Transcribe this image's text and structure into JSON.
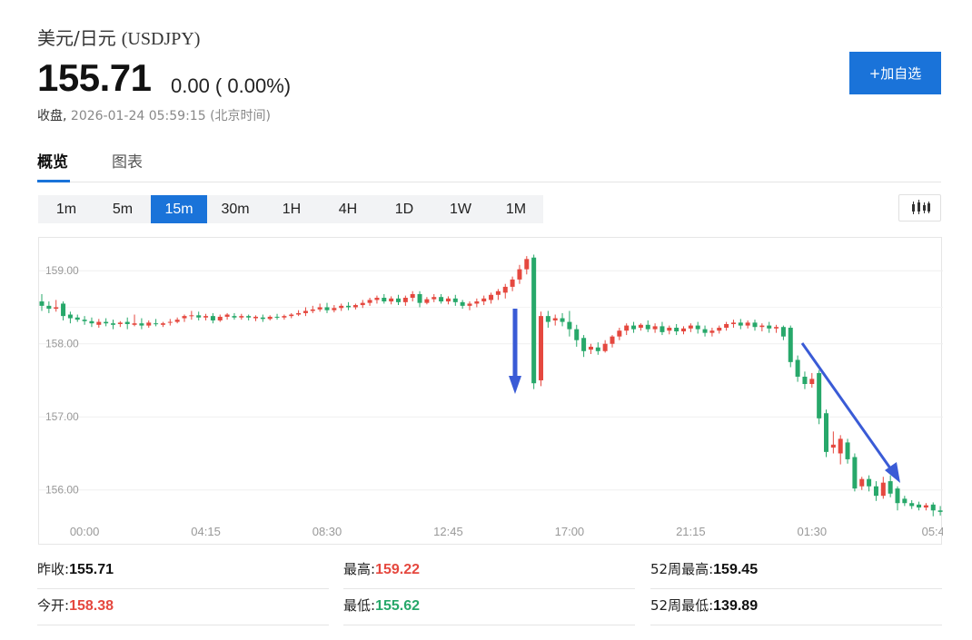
{
  "header": {
    "name": "美元/日元",
    "symbol": "(USDJPY)",
    "price": "155.71",
    "change": "0.00 ( 0.00%)",
    "status_label": "收盘,",
    "timestamp": "2026-01-24 05:59:15",
    "timezone": "(北京时间)",
    "watchlist_button": "+加自选"
  },
  "tabs": [
    {
      "label": "概览",
      "active": true
    },
    {
      "label": "图表",
      "active": false
    }
  ],
  "intervals": [
    {
      "label": "1m",
      "active": false
    },
    {
      "label": "5m",
      "active": false
    },
    {
      "label": "15m",
      "active": true
    },
    {
      "label": "30m",
      "active": false
    },
    {
      "label": "1H",
      "active": false
    },
    {
      "label": "4H",
      "active": false
    },
    {
      "label": "1D",
      "active": false
    },
    {
      "label": "1W",
      "active": false
    },
    {
      "label": "1M",
      "active": false
    }
  ],
  "chart_type_icon": "candlestick-icon",
  "colors": {
    "accent": "#1a73d9",
    "up": "#e5483f",
    "down": "#27a86a",
    "annotation_arrow": "#3a5bd6"
  },
  "chart_data": {
    "type": "candlestick",
    "ylim": [
      155.45,
      159.45
    ],
    "yticks": [
      "159.00",
      "158.00",
      "157.00",
      "156.00"
    ],
    "ytick_values": [
      159.0,
      158.0,
      157.0,
      156.0
    ],
    "xticks": [
      "00:00",
      "04:15",
      "08:30",
      "12:45",
      "17:00",
      "21:15",
      "01:30",
      "05:4"
    ],
    "xtick_index": [
      6,
      23,
      40,
      57,
      74,
      91,
      108,
      125
    ],
    "grid": true,
    "annotations": [
      "down-arrow near 16:00 spike",
      "down-arrow on 00:30–05:00 decline"
    ],
    "candles": [
      {
        "o": 158.58,
        "h": 158.68,
        "c": 158.52,
        "l": 158.45
      },
      {
        "o": 158.52,
        "h": 158.58,
        "c": 158.48,
        "l": 158.42
      },
      {
        "o": 158.48,
        "h": 158.6,
        "c": 158.5,
        "l": 158.44
      },
      {
        "o": 158.55,
        "h": 158.58,
        "c": 158.38,
        "l": 158.32
      },
      {
        "o": 158.4,
        "h": 158.44,
        "c": 158.35,
        "l": 158.28
      },
      {
        "o": 158.36,
        "h": 158.4,
        "c": 158.33,
        "l": 158.3
      },
      {
        "o": 158.33,
        "h": 158.38,
        "c": 158.31,
        "l": 158.26
      },
      {
        "o": 158.31,
        "h": 158.36,
        "c": 158.28,
        "l": 158.23
      },
      {
        "o": 158.26,
        "h": 158.34,
        "c": 158.3,
        "l": 158.22
      },
      {
        "o": 158.3,
        "h": 158.35,
        "c": 158.28,
        "l": 158.24
      },
      {
        "o": 158.28,
        "h": 158.33,
        "c": 158.26,
        "l": 158.2
      },
      {
        "o": 158.27,
        "h": 158.31,
        "c": 158.29,
        "l": 158.23
      },
      {
        "o": 158.3,
        "h": 158.36,
        "c": 158.27,
        "l": 158.2
      },
      {
        "o": 158.26,
        "h": 158.4,
        "c": 158.28,
        "l": 158.24
      },
      {
        "o": 158.28,
        "h": 158.35,
        "c": 158.25,
        "l": 158.2
      },
      {
        "o": 158.25,
        "h": 158.32,
        "c": 158.29,
        "l": 158.22
      },
      {
        "o": 158.28,
        "h": 158.34,
        "c": 158.27,
        "l": 158.24
      },
      {
        "o": 158.26,
        "h": 158.3,
        "c": 158.28,
        "l": 158.23
      },
      {
        "o": 158.29,
        "h": 158.34,
        "c": 158.3,
        "l": 158.25
      },
      {
        "o": 158.3,
        "h": 158.36,
        "c": 158.33,
        "l": 158.28
      },
      {
        "o": 158.35,
        "h": 158.4,
        "c": 158.38,
        "l": 158.3
      },
      {
        "o": 158.38,
        "h": 158.45,
        "c": 158.39,
        "l": 158.33
      },
      {
        "o": 158.39,
        "h": 158.44,
        "c": 158.36,
        "l": 158.32
      },
      {
        "o": 158.36,
        "h": 158.41,
        "c": 158.38,
        "l": 158.32
      },
      {
        "o": 158.38,
        "h": 158.42,
        "c": 158.32,
        "l": 158.28
      },
      {
        "o": 158.32,
        "h": 158.4,
        "c": 158.37,
        "l": 158.3
      },
      {
        "o": 158.37,
        "h": 158.42,
        "c": 158.4,
        "l": 158.33
      },
      {
        "o": 158.38,
        "h": 158.42,
        "c": 158.36,
        "l": 158.33
      },
      {
        "o": 158.36,
        "h": 158.41,
        "c": 158.38,
        "l": 158.33
      },
      {
        "o": 158.38,
        "h": 158.4,
        "c": 158.36,
        "l": 158.32
      },
      {
        "o": 158.35,
        "h": 158.39,
        "c": 158.37,
        "l": 158.31
      },
      {
        "o": 158.36,
        "h": 158.4,
        "c": 158.34,
        "l": 158.3
      },
      {
        "o": 158.34,
        "h": 158.39,
        "c": 158.37,
        "l": 158.32
      },
      {
        "o": 158.37,
        "h": 158.41,
        "c": 158.36,
        "l": 158.33
      },
      {
        "o": 158.36,
        "h": 158.4,
        "c": 158.38,
        "l": 158.33
      },
      {
        "o": 158.38,
        "h": 158.42,
        "c": 158.4,
        "l": 158.35
      },
      {
        "o": 158.4,
        "h": 158.46,
        "c": 158.42,
        "l": 158.38
      },
      {
        "o": 158.42,
        "h": 158.5,
        "c": 158.45,
        "l": 158.38
      },
      {
        "o": 158.45,
        "h": 158.52,
        "c": 158.47,
        "l": 158.42
      },
      {
        "o": 158.47,
        "h": 158.55,
        "c": 158.5,
        "l": 158.44
      },
      {
        "o": 158.5,
        "h": 158.56,
        "c": 158.46,
        "l": 158.42
      },
      {
        "o": 158.46,
        "h": 158.53,
        "c": 158.49,
        "l": 158.43
      },
      {
        "o": 158.49,
        "h": 158.55,
        "c": 158.52,
        "l": 158.45
      },
      {
        "o": 158.52,
        "h": 158.57,
        "c": 158.5,
        "l": 158.46
      },
      {
        "o": 158.5,
        "h": 158.55,
        "c": 158.53,
        "l": 158.47
      },
      {
        "o": 158.53,
        "h": 158.6,
        "c": 158.56,
        "l": 158.49
      },
      {
        "o": 158.56,
        "h": 158.63,
        "c": 158.6,
        "l": 158.52
      },
      {
        "o": 158.6,
        "h": 158.66,
        "c": 158.63,
        "l": 158.55
      },
      {
        "o": 158.63,
        "h": 158.68,
        "c": 158.58,
        "l": 158.55
      },
      {
        "o": 158.58,
        "h": 158.65,
        "c": 158.62,
        "l": 158.54
      },
      {
        "o": 158.62,
        "h": 158.67,
        "c": 158.57,
        "l": 158.53
      },
      {
        "o": 158.57,
        "h": 158.66,
        "c": 158.63,
        "l": 158.52
      },
      {
        "o": 158.63,
        "h": 158.72,
        "c": 158.68,
        "l": 158.58
      },
      {
        "o": 158.68,
        "h": 158.72,
        "c": 158.56,
        "l": 158.5
      },
      {
        "o": 158.56,
        "h": 158.64,
        "c": 158.61,
        "l": 158.54
      },
      {
        "o": 158.61,
        "h": 158.68,
        "c": 158.64,
        "l": 158.57
      },
      {
        "o": 158.64,
        "h": 158.68,
        "c": 158.58,
        "l": 158.55
      },
      {
        "o": 158.58,
        "h": 158.65,
        "c": 158.62,
        "l": 158.54
      },
      {
        "o": 158.62,
        "h": 158.67,
        "c": 158.57,
        "l": 158.52
      },
      {
        "o": 158.57,
        "h": 158.6,
        "c": 158.52,
        "l": 158.48
      },
      {
        "o": 158.52,
        "h": 158.58,
        "c": 158.55,
        "l": 158.46
      },
      {
        "o": 158.55,
        "h": 158.62,
        "c": 158.58,
        "l": 158.5
      },
      {
        "o": 158.58,
        "h": 158.66,
        "c": 158.62,
        "l": 158.53
      },
      {
        "o": 158.6,
        "h": 158.7,
        "c": 158.67,
        "l": 158.55
      },
      {
        "o": 158.67,
        "h": 158.75,
        "c": 158.72,
        "l": 158.6
      },
      {
        "o": 158.7,
        "h": 158.82,
        "c": 158.78,
        "l": 158.62
      },
      {
        "o": 158.78,
        "h": 158.92,
        "c": 158.88,
        "l": 158.72
      },
      {
        "o": 158.88,
        "h": 159.08,
        "c": 159.02,
        "l": 158.82
      },
      {
        "o": 159.02,
        "h": 159.2,
        "c": 159.16,
        "l": 158.95
      },
      {
        "o": 159.18,
        "h": 159.22,
        "c": 157.46,
        "l": 157.38
      },
      {
        "o": 157.5,
        "h": 158.44,
        "c": 158.38,
        "l": 157.42
      },
      {
        "o": 158.38,
        "h": 158.45,
        "c": 158.3,
        "l": 158.22
      },
      {
        "o": 158.32,
        "h": 158.4,
        "c": 158.35,
        "l": 158.25
      },
      {
        "o": 158.35,
        "h": 158.42,
        "c": 158.3,
        "l": 158.24
      },
      {
        "o": 158.3,
        "h": 158.45,
        "c": 158.2,
        "l": 158.1
      },
      {
        "o": 158.2,
        "h": 158.26,
        "c": 158.05,
        "l": 157.96
      },
      {
        "o": 158.08,
        "h": 158.12,
        "c": 157.9,
        "l": 157.82
      },
      {
        "o": 157.92,
        "h": 158.0,
        "c": 157.96,
        "l": 157.86
      },
      {
        "o": 157.95,
        "h": 158.02,
        "c": 157.9,
        "l": 157.85
      },
      {
        "o": 157.9,
        "h": 158.05,
        "c": 158.0,
        "l": 157.88
      },
      {
        "o": 158.0,
        "h": 158.12,
        "c": 158.1,
        "l": 157.95
      },
      {
        "o": 158.1,
        "h": 158.22,
        "c": 158.18,
        "l": 158.05
      },
      {
        "o": 158.18,
        "h": 158.28,
        "c": 158.25,
        "l": 158.12
      },
      {
        "o": 158.25,
        "h": 158.3,
        "c": 158.2,
        "l": 158.15
      },
      {
        "o": 158.22,
        "h": 158.28,
        "c": 158.26,
        "l": 158.18
      },
      {
        "o": 158.26,
        "h": 158.32,
        "c": 158.2,
        "l": 158.16
      },
      {
        "o": 158.2,
        "h": 158.28,
        "c": 158.24,
        "l": 158.15
      },
      {
        "o": 158.24,
        "h": 158.3,
        "c": 158.16,
        "l": 158.12
      },
      {
        "o": 158.18,
        "h": 158.25,
        "c": 158.22,
        "l": 158.13
      },
      {
        "o": 158.22,
        "h": 158.27,
        "c": 158.17,
        "l": 158.12
      },
      {
        "o": 158.17,
        "h": 158.24,
        "c": 158.21,
        "l": 158.13
      },
      {
        "o": 158.21,
        "h": 158.28,
        "c": 158.25,
        "l": 158.16
      },
      {
        "o": 158.25,
        "h": 158.3,
        "c": 158.2,
        "l": 158.14
      },
      {
        "o": 158.2,
        "h": 158.25,
        "c": 158.15,
        "l": 158.1
      },
      {
        "o": 158.15,
        "h": 158.22,
        "c": 158.18,
        "l": 158.1
      },
      {
        "o": 158.18,
        "h": 158.25,
        "c": 158.22,
        "l": 158.14
      },
      {
        "o": 158.22,
        "h": 158.3,
        "c": 158.27,
        "l": 158.18
      },
      {
        "o": 158.27,
        "h": 158.33,
        "c": 158.29,
        "l": 158.22
      },
      {
        "o": 158.29,
        "h": 158.34,
        "c": 158.25,
        "l": 158.2
      },
      {
        "o": 158.25,
        "h": 158.32,
        "c": 158.29,
        "l": 158.21
      },
      {
        "o": 158.29,
        "h": 158.33,
        "c": 158.23,
        "l": 158.18
      },
      {
        "o": 158.23,
        "h": 158.28,
        "c": 158.25,
        "l": 158.17
      },
      {
        "o": 158.25,
        "h": 158.3,
        "c": 158.21,
        "l": 158.15
      },
      {
        "o": 158.21,
        "h": 158.26,
        "c": 158.23,
        "l": 158.15
      },
      {
        "o": 158.23,
        "h": 158.25,
        "c": 158.1,
        "l": 158.05
      },
      {
        "o": 158.22,
        "h": 158.25,
        "c": 157.75,
        "l": 157.68
      },
      {
        "o": 157.78,
        "h": 157.84,
        "c": 157.55,
        "l": 157.48
      },
      {
        "o": 157.55,
        "h": 157.62,
        "c": 157.45,
        "l": 157.38
      },
      {
        "o": 157.45,
        "h": 157.6,
        "c": 157.52,
        "l": 157.4
      },
      {
        "o": 157.6,
        "h": 157.64,
        "c": 156.98,
        "l": 156.9
      },
      {
        "o": 157.05,
        "h": 157.1,
        "c": 156.52,
        "l": 156.45
      },
      {
        "o": 156.58,
        "h": 156.8,
        "c": 156.62,
        "l": 156.5
      },
      {
        "o": 156.5,
        "h": 156.75,
        "c": 156.7,
        "l": 156.35
      },
      {
        "o": 156.65,
        "h": 156.7,
        "c": 156.42,
        "l": 156.36
      },
      {
        "o": 156.45,
        "h": 156.5,
        "c": 156.02,
        "l": 155.98
      },
      {
        "o": 156.05,
        "h": 156.18,
        "c": 156.15,
        "l": 156.0
      },
      {
        "o": 156.15,
        "h": 156.2,
        "c": 156.05,
        "l": 155.98
      },
      {
        "o": 156.05,
        "h": 156.12,
        "c": 155.92,
        "l": 155.85
      },
      {
        "o": 155.92,
        "h": 156.18,
        "c": 156.1,
        "l": 155.88
      },
      {
        "o": 156.12,
        "h": 156.2,
        "c": 155.95,
        "l": 155.9
      },
      {
        "o": 156.02,
        "h": 156.05,
        "c": 155.82,
        "l": 155.72
      },
      {
        "o": 155.88,
        "h": 155.92,
        "c": 155.82,
        "l": 155.78
      },
      {
        "o": 155.82,
        "h": 155.86,
        "c": 155.78,
        "l": 155.74
      },
      {
        "o": 155.8,
        "h": 155.84,
        "c": 155.76,
        "l": 155.72
      },
      {
        "o": 155.76,
        "h": 155.82,
        "c": 155.79,
        "l": 155.72
      },
      {
        "o": 155.8,
        "h": 155.83,
        "c": 155.72,
        "l": 155.64
      },
      {
        "o": 155.72,
        "h": 155.78,
        "c": 155.7,
        "l": 155.65
      },
      {
        "o": 155.7,
        "h": 155.76,
        "c": 155.72,
        "l": 155.62
      },
      {
        "o": 155.72,
        "h": 155.82,
        "c": 155.71,
        "l": 155.66
      }
    ]
  },
  "stats": [
    {
      "label": "昨收:",
      "value": "155.71",
      "tone": "neutral"
    },
    {
      "label": "最高:",
      "value": "159.22",
      "tone": "up"
    },
    {
      "label": "52周最高:",
      "value": "159.45",
      "tone": "neutral"
    },
    {
      "label": "今开:",
      "value": "158.38",
      "tone": "up"
    },
    {
      "label": "最低:",
      "value": "155.62",
      "tone": "down"
    },
    {
      "label": "52周最低:",
      "value": "139.89",
      "tone": "neutral"
    }
  ]
}
